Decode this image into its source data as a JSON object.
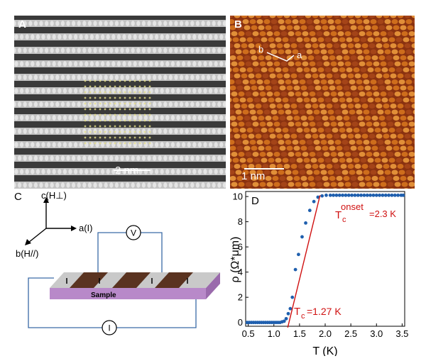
{
  "panels": {
    "a": {
      "letter": "A",
      "scale_bar": "2 nm"
    },
    "b": {
      "letter": "B",
      "scale_bar": "1 nm",
      "lattice_b": "b",
      "lattice_a": "a"
    },
    "c": {
      "letter": "C",
      "axis_c": "c(H⊥)",
      "axis_a": "a(I)",
      "axis_b": "b(H//)",
      "voltmeter": "V",
      "ammeter": "I",
      "sample_label": "Sample"
    },
    "d": {
      "letter": "D"
    }
  },
  "colors": {
    "stm_orange": "#d9781f",
    "stm_dark": "#8a3210",
    "sample_purple": "#b889c9",
    "electrode_brown": "#5a3320",
    "data_blue": "#1f5fae",
    "fit_red": "#d01010",
    "wire": "#3a6aa6"
  },
  "chart_data": {
    "type": "scatter",
    "xlabel": "T (K)",
    "ylabel": "ρ (Ω*μm)",
    "xlim": [
      0.45,
      3.55
    ],
    "ylim": [
      -0.3,
      10.4
    ],
    "xticks": [
      "0.5",
      "1.0",
      "1.5",
      "2.0",
      "2.5",
      "3.0",
      "3.5"
    ],
    "yticks": [
      "0",
      "2",
      "4",
      "6",
      "8",
      "10"
    ],
    "annotations": {
      "onset_main": "T",
      "onset_sub": "c",
      "onset_sup": "onset",
      "onset_value": "=2.3 K",
      "tc_main": "T",
      "tc_sub": "c",
      "tc_value": "=1.27 K"
    },
    "series": [
      {
        "x": [
          0.48,
          0.52,
          0.56,
          0.6,
          0.64,
          0.68,
          0.72,
          0.76,
          0.8,
          0.84,
          0.88,
          0.92,
          0.96,
          1.0,
          1.04,
          1.08,
          1.12,
          1.16,
          1.2,
          1.24,
          1.28,
          1.32,
          1.36,
          1.42,
          1.48,
          1.55,
          1.62,
          1.7,
          1.78,
          1.86,
          1.94,
          2.02,
          2.1,
          2.16,
          2.22,
          2.28,
          2.34,
          2.4,
          2.46,
          2.52,
          2.58,
          2.64,
          2.7,
          2.76,
          2.82,
          2.88,
          2.94,
          3.0,
          3.06,
          3.12,
          3.18,
          3.24,
          3.3,
          3.36,
          3.42,
          3.48,
          3.52
        ],
        "y": [
          0.0,
          0.0,
          0.0,
          0.0,
          0.0,
          0.0,
          0.0,
          0.0,
          0.0,
          0.0,
          0.0,
          0.0,
          0.0,
          0.0,
          0.0,
          0.0,
          0.0,
          0.05,
          0.1,
          0.3,
          0.7,
          1.1,
          2.0,
          4.2,
          5.4,
          6.8,
          7.9,
          8.9,
          9.6,
          9.95,
          10.05,
          10.1,
          10.1,
          10.1,
          10.1,
          10.1,
          10.1,
          10.1,
          10.1,
          10.1,
          10.1,
          10.1,
          10.1,
          10.1,
          10.1,
          10.1,
          10.1,
          10.1,
          10.1,
          10.1,
          10.1,
          10.1,
          10.1,
          10.1,
          10.1,
          10.1,
          10.1
        ]
      }
    ],
    "fit_line": {
      "x": [
        1.27,
        1.9
      ],
      "y": [
        -0.4,
        10.1
      ]
    }
  }
}
